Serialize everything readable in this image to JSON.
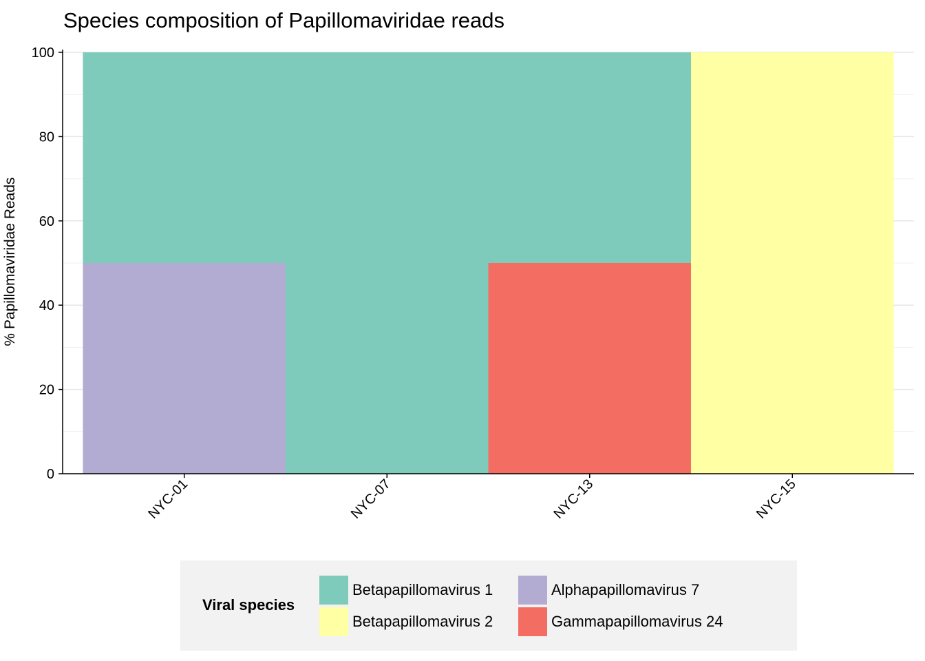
{
  "chart_data": {
    "type": "bar",
    "stacked": true,
    "title": "Species composition of Papillomaviridae reads",
    "xlabel": "",
    "ylabel": "% Papillomaviridae Reads",
    "ylim": [
      0,
      100
    ],
    "yticks": [
      "0",
      "20",
      "40",
      "60",
      "80",
      "100"
    ],
    "categories": [
      "NYC-01",
      "NYC-07",
      "NYC-13",
      "NYC-15"
    ],
    "grid": true,
    "legend_position": "bottom",
    "legend_title": "Viral species",
    "series": [
      {
        "name": "Alphapapillomavirus 7",
        "color": "#b2abd2",
        "values": [
          50,
          0,
          0,
          0
        ]
      },
      {
        "name": "Gammapapillomavirus 24",
        "color": "#f46d63",
        "values": [
          0,
          0,
          50,
          0
        ]
      },
      {
        "name": "Betapapillomavirus 2",
        "color": "#ffffa3",
        "values": [
          0,
          0,
          0,
          100
        ]
      },
      {
        "name": "Betapapillomavirus 1",
        "color": "#7fcbbb",
        "values": [
          50,
          100,
          50,
          0
        ]
      }
    ],
    "legend_order": [
      "Betapapillomavirus 1",
      "Betapapillomavirus 2",
      "Alphapapillomavirus 7",
      "Gammapapillomavirus 24"
    ]
  }
}
